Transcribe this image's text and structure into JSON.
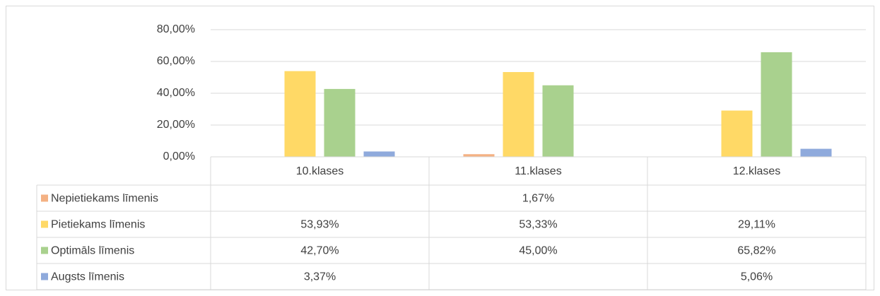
{
  "chart_data": {
    "type": "bar",
    "categories": [
      "10.klases",
      "11.klases",
      "12.klases"
    ],
    "series": [
      {
        "name": "Nepietiekams līmenis",
        "color": "#f4b183",
        "values": [
          null,
          1.67,
          null
        ],
        "value_labels": [
          null,
          "1,67%",
          null
        ]
      },
      {
        "name": "Pietiekams līmenis",
        "color": "#ffd966",
        "values": [
          53.93,
          53.33,
          29.11
        ],
        "value_labels": [
          "53,93%",
          "53,33%",
          "29,11%"
        ]
      },
      {
        "name": "Optimāls līmenis",
        "color": "#a9d18e",
        "values": [
          42.7,
          45.0,
          65.82
        ],
        "value_labels": [
          "42,70%",
          "45,00%",
          "65,82%"
        ]
      },
      {
        "name": "Augsts līmenis",
        "color": "#8faadc",
        "values": [
          3.37,
          null,
          5.06
        ],
        "value_labels": [
          "3,37%",
          null,
          "5,06%"
        ]
      }
    ],
    "ylim": [
      0,
      80
    ],
    "yticks": [
      {
        "value": 0,
        "label": "0,00%"
      },
      {
        "value": 20,
        "label": "20,00%"
      },
      {
        "value": 40,
        "label": "40,00%"
      },
      {
        "value": 60,
        "label": "60,00%"
      },
      {
        "value": 80,
        "label": "80,00%"
      }
    ],
    "grid": true,
    "data_table": true
  }
}
